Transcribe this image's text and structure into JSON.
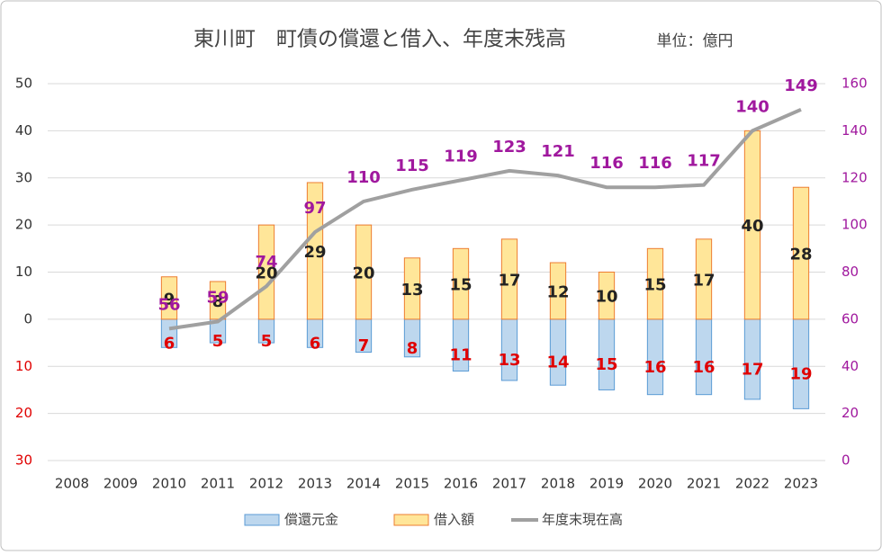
{
  "chart_data": {
    "type": "bar",
    "title": "東川町　町債の償還と借入、年度末残高",
    "subtitle": "単位：億円",
    "categories": [
      "2008",
      "2009",
      "2010",
      "2011",
      "2012",
      "2013",
      "2014",
      "2015",
      "2016",
      "2017",
      "2018",
      "2019",
      "2020",
      "2021",
      "2022",
      "2023"
    ],
    "series": [
      {
        "name": "償還元金",
        "color": "#bdd7ee",
        "edge": "#5b9bd5",
        "label_color": "#e00000",
        "values": [
          null,
          null,
          -6,
          -5,
          -5,
          -6,
          -7,
          -8,
          -11,
          -13,
          -14,
          -15,
          -16,
          -16,
          -17,
          -19
        ],
        "value_labels": [
          null,
          null,
          "6",
          "5",
          "5",
          "6",
          "7",
          "8",
          "11",
          "13",
          "14",
          "15",
          "16",
          "16",
          "17",
          "19"
        ]
      },
      {
        "name": "借入額",
        "color": "#ffe699",
        "edge": "#ed7d31",
        "label_color": "#222222",
        "values": [
          null,
          null,
          9,
          8,
          20,
          29,
          20,
          13,
          15,
          17,
          12,
          10,
          15,
          17,
          40,
          28
        ]
      },
      {
        "name": "年度末現在高",
        "type": "line",
        "axis": "y2",
        "color": "#a0a0a0",
        "label_color": "#a0189e",
        "values": [
          null,
          null,
          56,
          59,
          74,
          97,
          110,
          115,
          119,
          123,
          121,
          116,
          116,
          117,
          140,
          149
        ]
      }
    ],
    "ylim": [
      -30,
      50
    ],
    "yticks": [
      {
        "value": -30,
        "label": "30"
      },
      {
        "value": -20,
        "label": "20"
      },
      {
        "value": -10,
        "label": "10"
      },
      0,
      10,
      20,
      30,
      40,
      50
    ],
    "y2lim": [
      0,
      160
    ],
    "y2ticks": [
      0,
      20,
      40,
      60,
      80,
      100,
      120,
      140,
      160
    ],
    "grid": true,
    "legend": "bottom"
  }
}
